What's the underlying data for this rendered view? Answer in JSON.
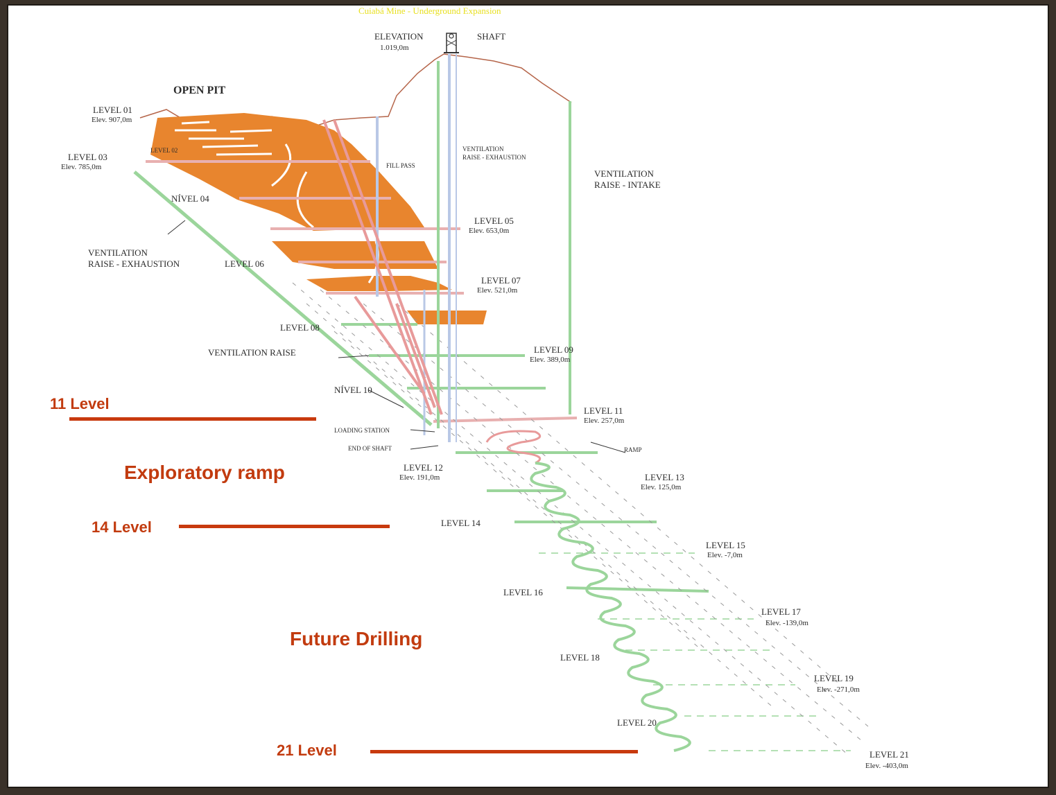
{
  "title": "Cuiabá Mine - Underground Expansion",
  "labels": {
    "elevation_title": "ELEVATION",
    "elevation_value": "1.019,0m",
    "shaft": "SHAFT",
    "open_pit": "OPEN PIT",
    "level01": "LEVEL 01",
    "level01_elev": "Elev. 907,0m",
    "level02": "LEVEL 02",
    "level03": "LEVEL 03",
    "level03_elev": "Elev. 785,0m",
    "fill_pass": "FILL PASS",
    "vent_raise_exhaust_top_1": "VENTILATION",
    "vent_raise_exhaust_top_2": "RAISE - EXHAUSTION",
    "vent_raise_intake_1": "VENTILATION",
    "vent_raise_intake_2": "RAISE - INTAKE",
    "nivel04": "NÍVEL 04",
    "level05": "LEVEL 05",
    "level05_elev": "Elev. 653,0m",
    "vent_raise_exhaust_left_1": "VENTILATION",
    "vent_raise_exhaust_left_2": "RAISE - EXHAUSTION",
    "level06": "LEVEL 06",
    "level07": "LEVEL 07",
    "level07_elev": "Elev. 521,0m",
    "level08": "LEVEL 08",
    "ventilation_raise": "VENTILATION RAISE",
    "level09": "LEVEL 09",
    "level09_elev": "Elev. 389,0m",
    "nivel10": "NÍVEL 10",
    "level11": "LEVEL 11",
    "level11_elev": "Elev. 257,0m",
    "loading_station": "LOADING STATION",
    "end_of_shaft": "END OF SHAFT",
    "ramp": "RAMP",
    "level12": "LEVEL 12",
    "level12_elev": "Elev. 191,0m",
    "level13": "LEVEL 13",
    "level13_elev": "Elev. 125,0m",
    "level14": "LEVEL 14",
    "level15": "LEVEL 15",
    "level15_elev": "Elev. -7,0m",
    "level16": "LEVEL 16",
    "level17": "LEVEL 17",
    "level17_elev": "Elev. -139,0m",
    "level18": "LEVEL 18",
    "level19": "LEVEL 19",
    "level19_elev": "Elev. -271,0m",
    "level20": "LEVEL 20",
    "level21": "LEVEL 21",
    "level21_elev": "Elev. -403,0m"
  },
  "annotations": {
    "level_11": "11 Level",
    "exploratory_ramp": "Exploratory ramp",
    "level_14": "14 Level",
    "future_drilling": "Future Drilling",
    "level_21": "21 Level"
  },
  "colors": {
    "ore_body": "#e8852e",
    "ground_line": "#b5654a",
    "ventilation": "#8fc98f",
    "shaft": "#b9c8e6",
    "ramp": "#e89a9a",
    "annotation": "#c83a0e",
    "title": "#e8e020"
  }
}
